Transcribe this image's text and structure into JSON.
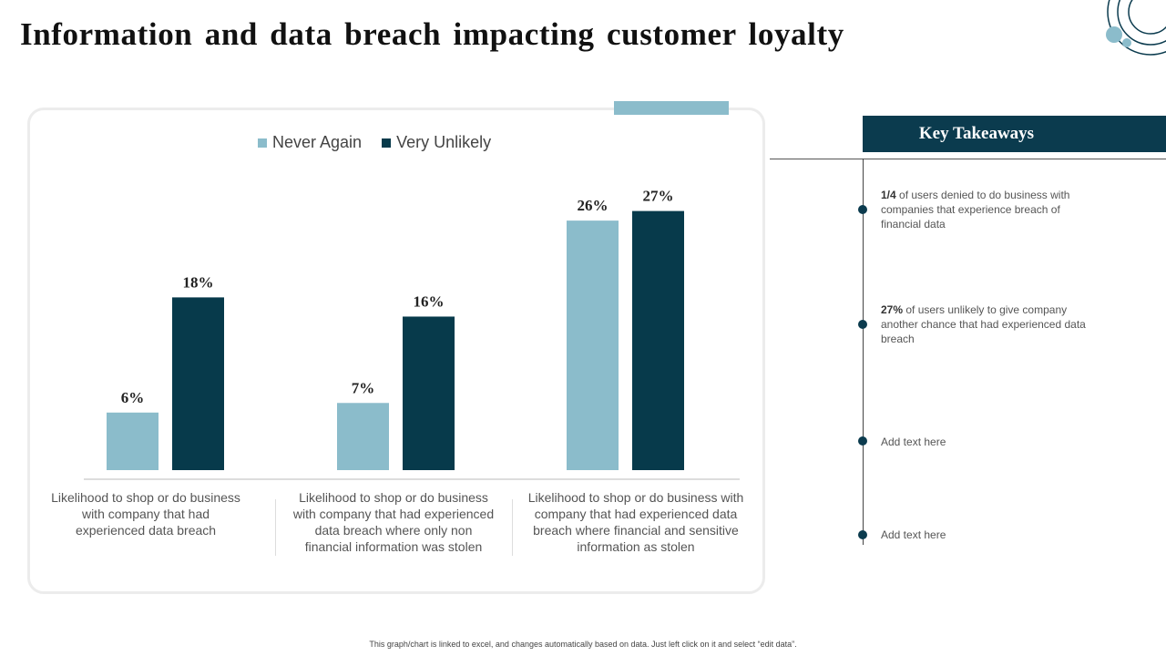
{
  "title": "Information and data breach impacting customer loyalty",
  "colors": {
    "never_again": "#8bbccb",
    "very_unlikely": "#073a4b",
    "accent_dark": "#0b3b4e",
    "accent_light": "#8bbccb"
  },
  "chart_data": {
    "type": "bar",
    "categories": [
      "Likelihood to shop or do business with company that had experienced data breach",
      "Likelihood to shop or do business with company that had experienced data breach where only non financial information was stolen",
      "Likelihood to shop or do business with company that had experienced data breach where financial and sensitive information as stolen"
    ],
    "series": [
      {
        "name": "Never Again",
        "values": [
          6,
          7,
          26
        ],
        "labels": [
          "6%",
          "7%",
          "26%"
        ]
      },
      {
        "name": "Very Unlikely",
        "values": [
          18,
          16,
          27
        ],
        "labels": [
          "18%",
          "16%",
          "27%"
        ]
      }
    ],
    "ylim": [
      0,
      30
    ],
    "legend_position": "top",
    "grid": false,
    "title": "",
    "xlabel": "",
    "ylabel": ""
  },
  "key_takeaways": {
    "header": "Key Takeaways",
    "items": [
      {
        "bold": "1/4",
        "text": " of users denied to do business with companies that experience breach of financial data"
      },
      {
        "bold": "27%",
        "text": " of users unlikely to give company another chance that had experienced data breach"
      },
      {
        "bold": "",
        "text": "Add text here"
      },
      {
        "bold": "",
        "text": "Add text here"
      }
    ]
  },
  "footnote": "This graph/chart is linked to excel, and changes automatically based on data. Just left click on it and select “edit data”."
}
